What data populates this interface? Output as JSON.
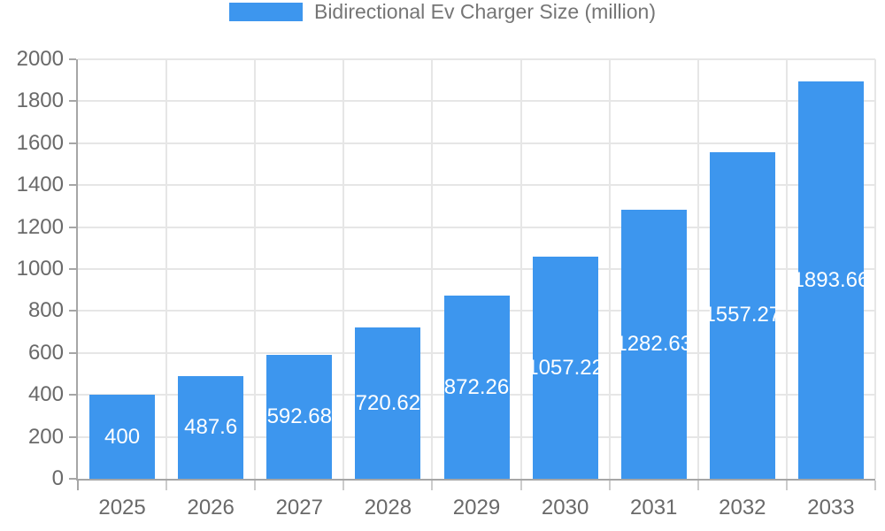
{
  "chart_data": {
    "type": "bar",
    "title": "Bidirectional Ev Charger Size (million)",
    "legend": [
      "Bidirectional Ev Charger Size (million)"
    ],
    "legend_position": "top",
    "categories": [
      "2025",
      "2026",
      "2027",
      "2028",
      "2029",
      "2030",
      "2031",
      "2032",
      "2033"
    ],
    "values": [
      400,
      487.6,
      592.68,
      720.62,
      872.26,
      1057.22,
      1282.63,
      1557.27,
      1893.66
    ],
    "value_labels": [
      "400",
      "487.6",
      "592.68",
      "720.62",
      "872.26",
      "1057.22",
      "1282.63",
      "1557.27",
      "1893.66"
    ],
    "xlabel": "",
    "ylabel": "",
    "ylim": [
      0,
      2000
    ],
    "ytick_step": 200,
    "ytick_labels": [
      "0",
      "200",
      "400",
      "600",
      "800",
      "1000",
      "1200",
      "1400",
      "1600",
      "1800",
      "2000"
    ],
    "grid": true,
    "colors": {
      "bar": "#3d96ee",
      "value_label": "#ffffff",
      "axis_text": "#696969",
      "legend_text": "#757575",
      "grid_line": "#e6e6e6",
      "axis_line": "#a6a6a6",
      "minor_tick": "#cccccc"
    }
  }
}
